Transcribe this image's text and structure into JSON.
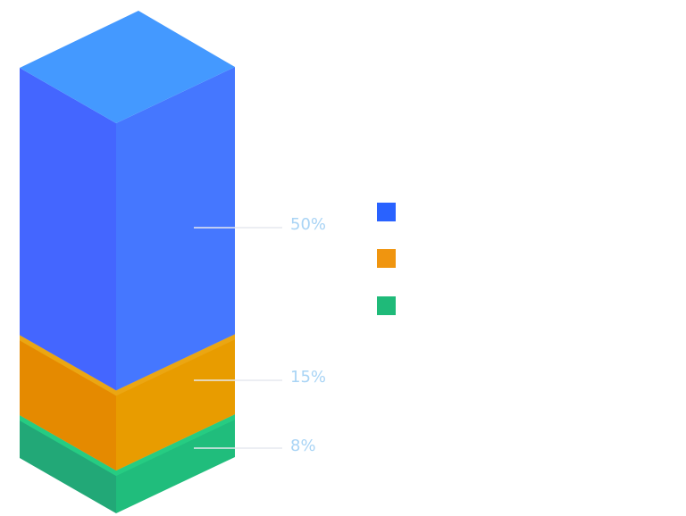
{
  "chart_data": {
    "type": "bar",
    "style": "isometric-stacked-column",
    "series": [
      {
        "value": 50,
        "label": "50%",
        "colors": {
          "top": "#4499ff",
          "left": "#4466ff",
          "right": "#4577ff"
        },
        "legend_color": "#2962ff"
      },
      {
        "value": 15,
        "label": "15%",
        "colors": {
          "top": "#eba612",
          "left": "#e58a00",
          "right": "#e89c00"
        },
        "legend_color": "#f0950f"
      },
      {
        "value": 8,
        "label": "8%",
        "colors": {
          "top": "#26cc82",
          "left": "#22a877",
          "right": "#20bd7c"
        },
        "legend_color": "#1fba79"
      }
    ],
    "label_color": "#a9d4f5",
    "leader_color": "#e6e9ef"
  }
}
